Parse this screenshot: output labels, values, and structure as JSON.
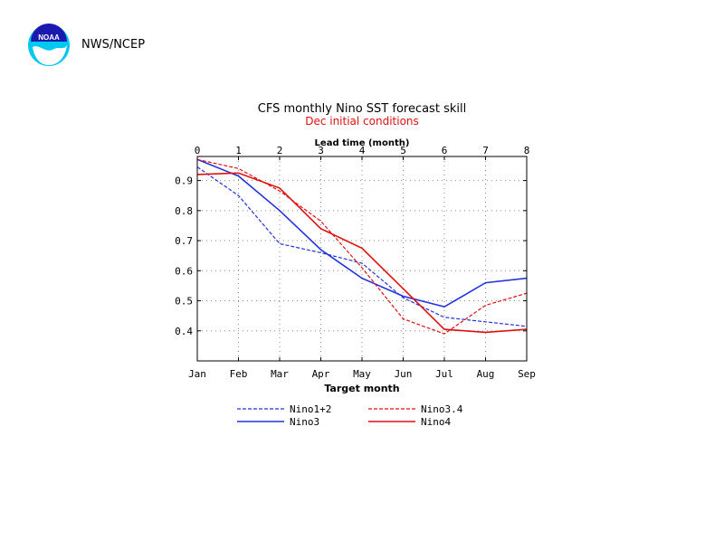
{
  "header": {
    "org_label": "NWS/NCEP",
    "logo_text": "NOAA"
  },
  "colors": {
    "blue": "#2233dd",
    "red": "#e01010",
    "grid": "#888888"
  },
  "chart_data": {
    "type": "line",
    "title": "CFS monthly Nino SST forecast skill",
    "subtitle": "Dec initial conditions",
    "xlabel": "Target month",
    "x2label": "Lead time (month)",
    "x": [
      0,
      1,
      2,
      3,
      4,
      5,
      6,
      7,
      8
    ],
    "categories": [
      "Jan",
      "Feb",
      "Mar",
      "Apr",
      "May",
      "Jun",
      "Jul",
      "Aug",
      "Sep"
    ],
    "xlim": [
      0,
      8
    ],
    "ylim": [
      0.3,
      0.98
    ],
    "yticks": [
      0.4,
      0.5,
      0.6,
      0.7,
      0.8,
      0.9
    ],
    "ytick_labels": [
      "0.4",
      "0.5",
      "0.6",
      "0.7",
      "0.8",
      "0.9"
    ],
    "grid": true,
    "legend_position": "bottom",
    "series": [
      {
        "name": "Nino1+2",
        "color": "blue",
        "style": "dashed",
        "values": [
          0.945,
          0.85,
          0.69,
          0.66,
          0.625,
          0.51,
          0.445,
          0.43,
          0.415
        ]
      },
      {
        "name": "Nino3",
        "color": "blue",
        "style": "solid",
        "values": [
          0.97,
          0.915,
          0.8,
          0.67,
          0.575,
          0.515,
          0.48,
          0.56,
          0.575
        ]
      },
      {
        "name": "Nino3.4",
        "color": "red",
        "style": "dashed",
        "values": [
          0.97,
          0.94,
          0.865,
          0.765,
          0.61,
          0.44,
          0.39,
          0.485,
          0.525
        ]
      },
      {
        "name": "Nino4",
        "color": "red",
        "style": "solid",
        "values": [
          0.92,
          0.925,
          0.875,
          0.74,
          0.675,
          0.54,
          0.405,
          0.395,
          0.405
        ]
      }
    ]
  }
}
